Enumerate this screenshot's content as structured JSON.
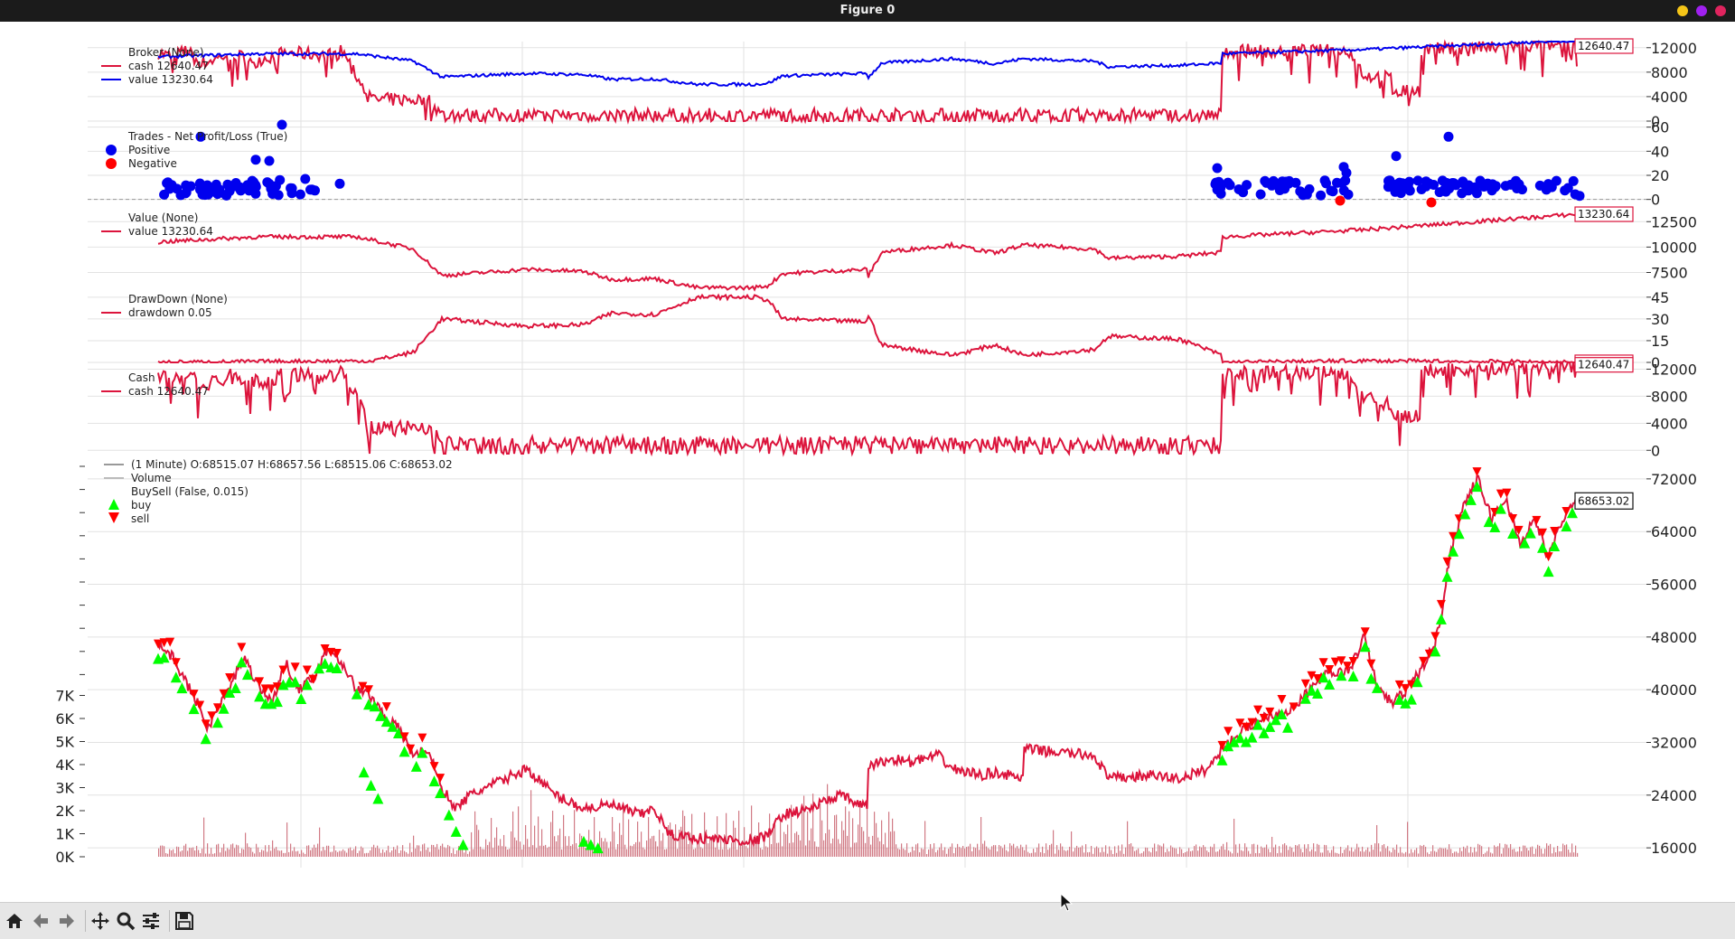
{
  "window": {
    "title": "Figure 0",
    "buttons": [
      {
        "name": "minimize",
        "color": "#f5c518"
      },
      {
        "name": "maximize",
        "color": "#a020f0"
      },
      {
        "name": "close",
        "color": "#e0245e"
      }
    ]
  },
  "colors": {
    "blue": "#0000ee",
    "crimson": "#dc143c",
    "green": "#00ff00",
    "red": "#ff0000",
    "grid": "#e2e2e2",
    "volume": "#d17a85"
  },
  "toolbar": {
    "icons": [
      "home-icon",
      "back-arrow-icon",
      "forward-arrow-icon",
      "pan-icon",
      "zoom-icon",
      "configure-icon",
      "save-icon"
    ]
  },
  "chart_data": [
    {
      "id": "broker",
      "type": "line",
      "legend": {
        "title": "Broker (None)",
        "entries": [
          "cash 12640.47",
          "value 13230.64"
        ]
      },
      "series": [
        {
          "name": "cash",
          "color": "#dc143c",
          "keypoints": [
            [
              0,
              11200
            ],
            [
              0.01,
              10500
            ],
            [
              0.02,
              11600
            ],
            [
              0.03,
              9300
            ],
            [
              0.05,
              11000
            ],
            [
              0.07,
              10000
            ],
            [
              0.09,
              11200
            ],
            [
              0.12,
              10800
            ],
            [
              0.13,
              11500
            ],
            [
              0.15,
              3500
            ],
            [
              0.19,
              3500
            ],
            [
              0.2,
              1000
            ],
            [
              0.75,
              1000
            ],
            [
              0.75,
              11500
            ],
            [
              0.84,
              11500
            ],
            [
              0.85,
              7500
            ],
            [
              0.87,
              7000
            ],
            [
              0.87,
              5000
            ],
            [
              0.89,
              5000
            ],
            [
              0.89,
              11700
            ],
            [
              1,
              12640.47
            ]
          ]
        },
        {
          "name": "value",
          "color": "#0000ee",
          "keypoints": [
            [
              0,
              10500
            ],
            [
              0.07,
              11000
            ],
            [
              0.14,
              11000
            ],
            [
              0.18,
              9800
            ],
            [
              0.2,
              7200
            ],
            [
              0.26,
              7800
            ],
            [
              0.3,
              7600
            ],
            [
              0.32,
              6800
            ],
            [
              0.35,
              6900
            ],
            [
              0.38,
              6000
            ],
            [
              0.42,
              6000
            ],
            [
              0.43,
              6200
            ],
            [
              0.44,
              7400
            ],
            [
              0.5,
              7800
            ],
            [
              0.5,
              7000
            ],
            [
              0.51,
              9500
            ],
            [
              0.56,
              10200
            ],
            [
              0.59,
              9400
            ],
            [
              0.61,
              10200
            ],
            [
              0.66,
              9800
            ],
            [
              0.67,
              8900
            ],
            [
              0.72,
              9100
            ],
            [
              0.75,
              9500
            ],
            [
              0.75,
              11000
            ],
            [
              0.85,
              11700
            ],
            [
              0.9,
              12200
            ],
            [
              1,
              13230.64
            ]
          ]
        }
      ],
      "yticks": [
        0,
        4000,
        8000,
        12000
      ],
      "ylim": [
        0,
        13000
      ],
      "last_value_labels": [
        "12640.47"
      ]
    },
    {
      "id": "trades",
      "type": "scatter",
      "legend": {
        "title": "Trades - Net Profit/Loss (True)",
        "entries": [
          "Positive",
          "Negative"
        ]
      },
      "series": [
        {
          "name": "Positive",
          "color": "#0000ee"
        },
        {
          "name": "Negative",
          "color": "#ff0000"
        }
      ],
      "yticks": [
        0,
        20,
        40,
        60
      ],
      "ylim": [
        -10,
        65
      ],
      "reference_line": 0
    },
    {
      "id": "value",
      "type": "line",
      "legend": {
        "title": "Value (None)",
        "entries": [
          "value 13230.64"
        ]
      },
      "series": [
        {
          "name": "value",
          "color": "#dc143c",
          "keypoints": [
            [
              0,
              10500
            ],
            [
              0.07,
              11000
            ],
            [
              0.14,
              11000
            ],
            [
              0.18,
              9800
            ],
            [
              0.2,
              7200
            ],
            [
              0.26,
              7800
            ],
            [
              0.3,
              7600
            ],
            [
              0.32,
              6800
            ],
            [
              0.35,
              6900
            ],
            [
              0.38,
              6000
            ],
            [
              0.42,
              6000
            ],
            [
              0.43,
              6200
            ],
            [
              0.44,
              7400
            ],
            [
              0.5,
              7800
            ],
            [
              0.5,
              7000
            ],
            [
              0.51,
              9500
            ],
            [
              0.56,
              10200
            ],
            [
              0.59,
              9400
            ],
            [
              0.61,
              10200
            ],
            [
              0.66,
              9800
            ],
            [
              0.67,
              8900
            ],
            [
              0.72,
              9100
            ],
            [
              0.75,
              9500
            ],
            [
              0.75,
              11000
            ],
            [
              0.85,
              11700
            ],
            [
              0.9,
              12200
            ],
            [
              1,
              13230.64
            ]
          ]
        }
      ],
      "yticks": [
        7500,
        10000,
        12500
      ],
      "ylim": [
        5500,
        13500
      ],
      "last_value_labels": [
        "13230.64"
      ]
    },
    {
      "id": "drawdown",
      "type": "line",
      "legend": {
        "title": "DrawDown (None)",
        "entries": [
          "drawdown 0.05"
        ]
      },
      "series": [
        {
          "name": "drawdown",
          "color": "#dc143c",
          "keypoints": [
            [
              0,
              0
            ],
            [
              0.15,
              1
            ],
            [
              0.18,
              7
            ],
            [
              0.2,
              30
            ],
            [
              0.26,
              25
            ],
            [
              0.3,
              26
            ],
            [
              0.32,
              34
            ],
            [
              0.35,
              33
            ],
            [
              0.38,
              45
            ],
            [
              0.42,
              45
            ],
            [
              0.43,
              43
            ],
            [
              0.44,
              30
            ],
            [
              0.5,
              28
            ],
            [
              0.5,
              34
            ],
            [
              0.51,
              12
            ],
            [
              0.56,
              5
            ],
            [
              0.59,
              12
            ],
            [
              0.61,
              5
            ],
            [
              0.66,
              9
            ],
            [
              0.67,
              18
            ],
            [
              0.72,
              16
            ],
            [
              0.75,
              5
            ],
            [
              0.75,
              0
            ],
            [
              0.85,
              1
            ],
            [
              1,
              0.05
            ]
          ]
        }
      ],
      "yticks": [
        0,
        15,
        30,
        45
      ],
      "ylim": [
        0,
        48
      ],
      "last_value_labels": [
        "0.05"
      ]
    },
    {
      "id": "cash",
      "type": "line",
      "legend": {
        "title": "Cash",
        "entries": [
          "cash 12640.47"
        ]
      },
      "series": [
        {
          "name": "cash",
          "color": "#dc143c",
          "keypoints": [
            [
              0,
              11200
            ],
            [
              0.01,
              10500
            ],
            [
              0.02,
              11600
            ],
            [
              0.03,
              9300
            ],
            [
              0.05,
              11000
            ],
            [
              0.07,
              10000
            ],
            [
              0.09,
              11200
            ],
            [
              0.12,
              10800
            ],
            [
              0.13,
              11500
            ],
            [
              0.15,
              3500
            ],
            [
              0.19,
              3500
            ],
            [
              0.2,
              1000
            ],
            [
              0.75,
              1000
            ],
            [
              0.75,
              11500
            ],
            [
              0.84,
              11500
            ],
            [
              0.85,
              7500
            ],
            [
              0.87,
              7000
            ],
            [
              0.87,
              5000
            ],
            [
              0.89,
              5000
            ],
            [
              0.89,
              11700
            ],
            [
              1,
              12640.47
            ]
          ]
        }
      ],
      "yticks": [
        0,
        4000,
        8000,
        12000
      ],
      "ylim": [
        -500,
        13000
      ],
      "last_value_labels": [
        "12640.47"
      ]
    },
    {
      "id": "price",
      "type": "line",
      "legend": {
        "title": "(1 Minute) O:68515.07 H:68657.56 L:68515.06 C:68653.02",
        "entries": [
          "Volume",
          "BuySell (False, 0.015)",
          "buy",
          "sell"
        ]
      },
      "series": [
        {
          "name": "close",
          "color": "#dc143c",
          "keypoints": [
            [
              0,
              47000
            ],
            [
              0.01,
              45000
            ],
            [
              0.02,
              41000
            ],
            [
              0.03,
              37000
            ],
            [
              0.035,
              34000
            ],
            [
              0.04,
              36500
            ],
            [
              0.05,
              40000
            ],
            [
              0.06,
              45000
            ],
            [
              0.07,
              41000
            ],
            [
              0.08,
              38000
            ],
            [
              0.09,
              44000
            ],
            [
              0.1,
              40000
            ],
            [
              0.11,
              42000
            ],
            [
              0.12,
              46500
            ],
            [
              0.13,
              44000
            ],
            [
              0.14,
              40000
            ],
            [
              0.15,
              39000
            ],
            [
              0.16,
              36000
            ],
            [
              0.17,
              34000
            ],
            [
              0.18,
              30000
            ],
            [
              0.19,
              31000
            ],
            [
              0.2,
              25000
            ],
            [
              0.21,
              22000
            ],
            [
              0.22,
              24000
            ],
            [
              0.24,
              26000
            ],
            [
              0.26,
              28000
            ],
            [
              0.27,
              26000
            ],
            [
              0.28,
              24000
            ],
            [
              0.3,
              22000
            ],
            [
              0.32,
              22500
            ],
            [
              0.34,
              21000
            ],
            [
              0.35,
              22000
            ],
            [
              0.36,
              18000
            ],
            [
              0.38,
              17500
            ],
            [
              0.42,
              17000
            ],
            [
              0.43,
              18000
            ],
            [
              0.44,
              21000
            ],
            [
              0.46,
              22000
            ],
            [
              0.48,
              24000
            ],
            [
              0.5,
              22000
            ],
            [
              0.5,
              28500
            ],
            [
              0.52,
              29500
            ],
            [
              0.53,
              29000
            ],
            [
              0.55,
              30000
            ],
            [
              0.56,
              28000
            ],
            [
              0.58,
              27000
            ],
            [
              0.59,
              27500
            ],
            [
              0.61,
              26500
            ],
            [
              0.61,
              31000
            ],
            [
              0.66,
              30000
            ],
            [
              0.67,
              26500
            ],
            [
              0.7,
              27000
            ],
            [
              0.72,
              26500
            ],
            [
              0.74,
              28000
            ],
            [
              0.75,
              31000
            ],
            [
              0.76,
              33000
            ],
            [
              0.78,
              36000
            ],
            [
              0.8,
              37000
            ],
            [
              0.82,
              42000
            ],
            [
              0.84,
              43000
            ],
            [
              0.85,
              48000
            ],
            [
              0.86,
              40000
            ],
            [
              0.87,
              38000
            ],
            [
              0.88,
              40000
            ],
            [
              0.89,
              43000
            ],
            [
              0.9,
              47000
            ],
            [
              0.905,
              52000
            ],
            [
              0.91,
              60000
            ],
            [
              0.92,
              68000
            ],
            [
              0.93,
              72000
            ],
            [
              0.94,
              66000
            ],
            [
              0.95,
              69000
            ],
            [
              0.96,
              62000
            ],
            [
              0.97,
              66000
            ],
            [
              0.98,
              60000
            ],
            [
              0.99,
              66000
            ],
            [
              1,
              68653.02
            ]
          ]
        }
      ],
      "yticks": [
        16000,
        24000,
        32000,
        40000,
        48000,
        56000,
        64000,
        72000
      ],
      "ylim": [
        13000,
        75000
      ],
      "volume_ticks": [
        "0K",
        "1K",
        "2K",
        "3K",
        "4K",
        "5K",
        "6K",
        "7K"
      ],
      "last_value_labels": [
        "68653.02"
      ]
    }
  ]
}
